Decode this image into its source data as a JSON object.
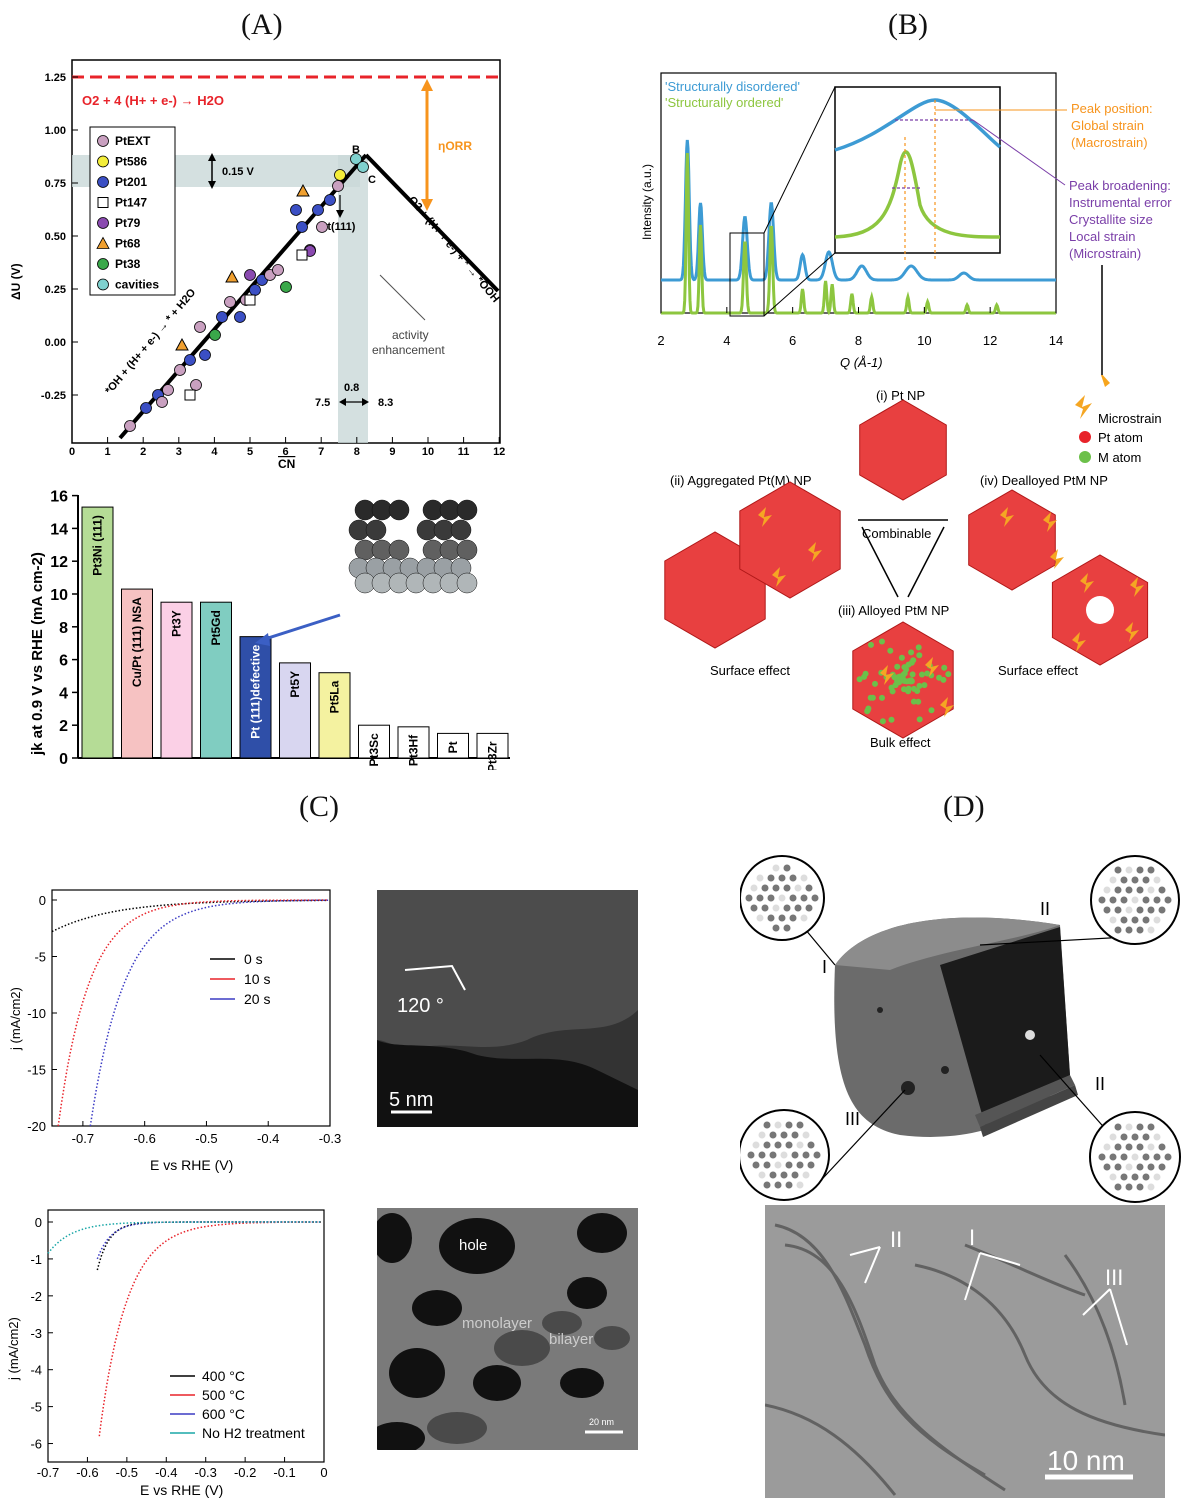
{
  "labels": {
    "A": "(A)",
    "B": "(B)",
    "C": "(C)",
    "D": "(D)"
  },
  "colors": {
    "red": "#e8232a",
    "green": "#8dc63f",
    "blue": "#3d9bd4",
    "orange": "#f7941d",
    "purple": "#7a3ea8",
    "teal": "#9fb9b9"
  },
  "panelA": {
    "volcano": {
      "ylabel": "ΔU  (V)",
      "xlabel": "CN",
      "yticks": [
        "1.25",
        "1.00",
        "0.75",
        "0.50",
        "0.25",
        "0.00",
        "-0.25"
      ],
      "xticks": [
        "0",
        "1",
        "2",
        "3",
        "4",
        "5",
        "6",
        "7",
        "8",
        "9",
        "10",
        "11",
        "12"
      ],
      "topline_eq": "O2 + 4 (H+ + e-) → H2O",
      "eta": "ηORR",
      "gap": "0.15 V",
      "pointB": "B",
      "pointC": "C",
      "pt111": "Pt(111)",
      "left_rxn": "*OH + (H+ + e-) → * + H2O",
      "right_rxn": "O2 + (H+ + e-) + * → *OOH",
      "activity": [
        "activity",
        "enhancement"
      ],
      "range_08": "0.8",
      "range_75": "7.5",
      "range_83": "8.3",
      "legend": [
        {
          "label": "PtEXT",
          "color": "#c9a0c0",
          "shape": "circle"
        },
        {
          "label": "Pt586",
          "color": "#f4ee3a",
          "shape": "circle"
        },
        {
          "label": "Pt201",
          "color": "#3b4fc4",
          "shape": "circle"
        },
        {
          "label": "Pt147",
          "color": "#ffffff",
          "shape": "square"
        },
        {
          "label": "Pt79",
          "color": "#8a4ab0",
          "shape": "circle"
        },
        {
          "label": "Pt68",
          "color": "#f0a030",
          "shape": "triangle"
        },
        {
          "label": "Pt38",
          "color": "#3aa84a",
          "shape": "circle"
        },
        {
          "label": "cavities",
          "color": "#7fd1cf",
          "shape": "circle"
        }
      ]
    },
    "bars": {
      "ylabel": "jk at 0.9 V vs RHE  (mA cm-2)",
      "yticks": [
        "16",
        "14",
        "12",
        "10",
        "8",
        "6",
        "4",
        "2",
        "0"
      ],
      "items": [
        {
          "label": "Pt3Ni (111)",
          "value": 15.3,
          "color": "#b5dc96"
        },
        {
          "label": "Cu/Pt (111) NSA",
          "value": 10.3,
          "color": "#f6c2c2"
        },
        {
          "label": "Pt3Y",
          "value": 9.5,
          "color": "#fbd0e6"
        },
        {
          "label": "Pt5Gd",
          "value": 9.5,
          "color": "#80cdc1"
        },
        {
          "label": "Pt (111)defective",
          "value": 7.4,
          "color": "#2f4fa8"
        },
        {
          "label": "Pt5Y",
          "value": 5.8,
          "color": "#d8d6f0"
        },
        {
          "label": "Pt5La",
          "value": 5.2,
          "color": "#f4f2a0"
        },
        {
          "label": "Pt3Sc",
          "value": 2.0,
          "color": "#ffffff"
        },
        {
          "label": "Pt3Hf",
          "value": 1.9,
          "color": "#ffffff"
        },
        {
          "label": "Pt",
          "value": 1.5,
          "color": "#ffffff"
        },
        {
          "label": "Pt3Zr",
          "value": 1.5,
          "color": "#ffffff"
        }
      ]
    }
  },
  "panelB": {
    "legend1": "'Structurally disordered'",
    "legend2": "'Structurally ordered'",
    "ylabel": "Intensity (a.u.)",
    "xlabel": "Q (Å-1)",
    "xticks": [
      "2",
      "4",
      "6",
      "8",
      "10",
      "12",
      "14"
    ],
    "ann_position": [
      "Peak position:",
      "Global strain",
      "(Macrostrain)"
    ],
    "ann_broadening": [
      "Peak broadening:",
      "Instrumental error",
      "Crystallite size",
      "Local strain",
      "(Microstrain)"
    ],
    "key": [
      "Microstrain",
      "Pt atom",
      "M atom"
    ],
    "np_i": "(i) Pt NP",
    "np_ii": "(ii) Aggregated Pt(M) NP",
    "np_iii": "(iii) Alloyed PtM NP",
    "np_iv": "(iv) Dealloyed PtM NP",
    "combinable": "Combinable",
    "surface1": "Surface effect",
    "surface2": "Surface effect",
    "bulk": "Bulk effect"
  },
  "panelC": {
    "top": {
      "ylabel": "j (mA/cm2)",
      "xlabel": "E vs RHE (V)",
      "xticks": [
        "-0.7",
        "-0.6",
        "-0.5",
        "-0.4",
        "-0.3"
      ],
      "yticks": [
        "0",
        "-5",
        "-10",
        "-15",
        "-20"
      ],
      "series": [
        {
          "name": "0 s",
          "color": "#000000"
        },
        {
          "name": "10 s",
          "color": "#e8232a"
        },
        {
          "name": "20 s",
          "color": "#3b3bc4"
        }
      ]
    },
    "bottom": {
      "ylabel": "j (mA/cm2)",
      "xlabel": "E vs RHE (V)",
      "xticks": [
        "-0.7",
        "-0.6",
        "-0.5",
        "-0.4",
        "-0.3",
        "-0.2",
        "-0.1",
        "0"
      ],
      "yticks": [
        "0",
        "-1",
        "-2",
        "-3",
        "-4",
        "-5",
        "-6"
      ],
      "series": [
        {
          "name": "400 °C",
          "color": "#000000"
        },
        {
          "name": "500 °C",
          "color": "#e8232a"
        },
        {
          "name": "600 °C",
          "color": "#3b3bc4"
        },
        {
          "name": "No H2 treatment",
          "color": "#1aa7a7"
        }
      ]
    },
    "img1": {
      "angle": "120 °",
      "scale": "5 nm"
    },
    "img2": {
      "hole": "hole",
      "mono": "monolayer",
      "bi": "bilayer",
      "scale": "20 nm"
    }
  },
  "panelD": {
    "roman1": "I",
    "roman2": "II",
    "roman3": "II",
    "roman4": "III",
    "tem": {
      "l1": "II",
      "l2": "I",
      "l3": "III",
      "scale": "10 nm"
    }
  }
}
